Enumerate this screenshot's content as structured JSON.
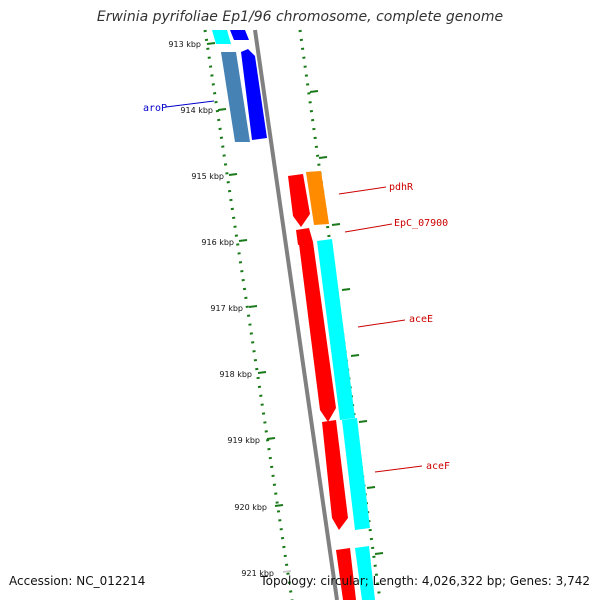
{
  "title": "Erwinia pyrifoliae Ep1/96 chromosome, complete genome",
  "footer": {
    "accession": "Accession: NC_012214",
    "summary": "Topology: circular; Length: 4,026,322 bp; Genes: 3,742"
  },
  "ticks": [
    "913 kbp",
    "914 kbp",
    "915 kbp",
    "916 kbp",
    "917 kbp",
    "918 kbp",
    "919 kbp",
    "920 kbp",
    "921 kbp"
  ],
  "gene_labels": [
    {
      "name": "aroP",
      "color": "#0000cc"
    },
    {
      "name": "pdhR",
      "color": "#cc0000"
    },
    {
      "name": "EpC_07900",
      "color": "#cc0000"
    },
    {
      "name": "aceE",
      "color": "#cc0000"
    },
    {
      "name": "aceF",
      "color": "#cc0000"
    }
  ],
  "colors": {
    "backbone": "#808080",
    "gc_dots": "#1a7a1a",
    "cds_forward": "#ff0000",
    "cds_reverse": "#0000ff",
    "orf_cyan": "#00ffff",
    "orf_steel": "#4682b4",
    "orf_orange": "#ff8c00"
  }
}
